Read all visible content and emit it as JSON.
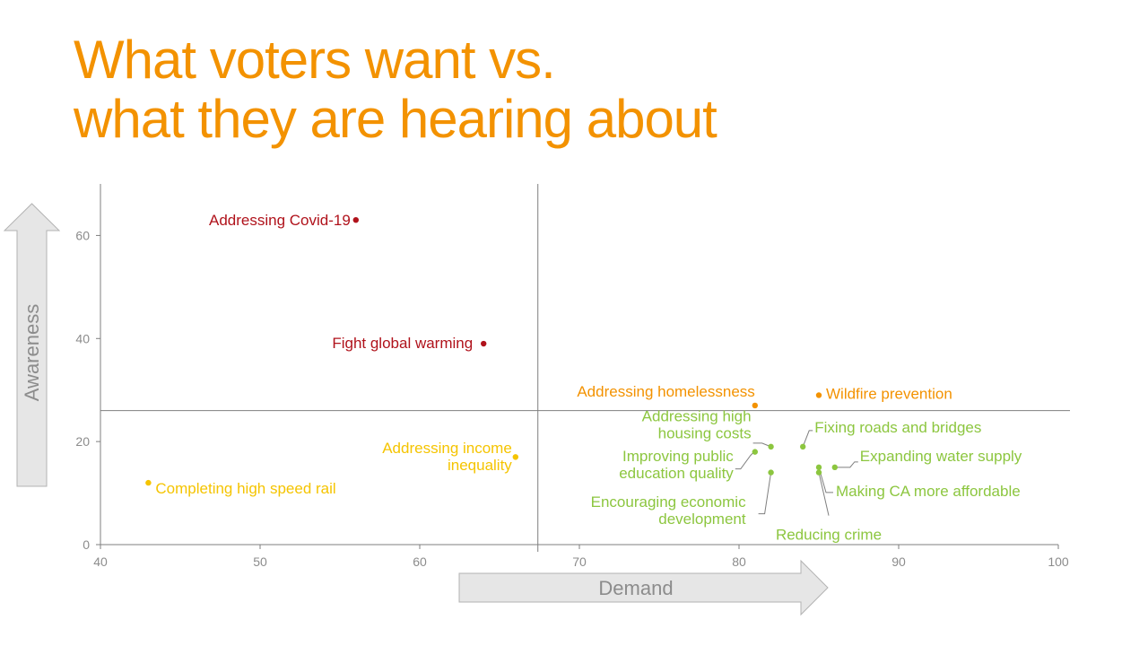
{
  "title": {
    "line1": "What voters want vs.",
    "line2": "what they are hearing about"
  },
  "colors": {
    "title": "#f39200",
    "dark_red": "#b0121b",
    "orange": "#f39200",
    "yellow": "#f5c400",
    "green": "#8cc63f",
    "axis": "#7f7f7f",
    "arrow_fill": "#e6e6e6",
    "arrow_stroke": "#b3b3b3"
  },
  "chart_data": {
    "type": "scatter",
    "title": "What voters want vs. what they are hearing about",
    "xlabel": "Demand",
    "ylabel": "Awareness",
    "xlim": [
      40,
      100
    ],
    "ylim": [
      0,
      70
    ],
    "x_ticks": [
      40,
      50,
      60,
      70,
      80,
      90,
      100
    ],
    "y_ticks": [
      0,
      20,
      40,
      60
    ],
    "quadrant_lines": {
      "x": 67.4,
      "y": 26
    },
    "grid": false,
    "points": [
      {
        "label": [
          "Addressing Covid-19"
        ],
        "x": 56,
        "y": 63,
        "group": "dark_red"
      },
      {
        "label": [
          "Fight global warming"
        ],
        "x": 64,
        "y": 39,
        "group": "dark_red"
      },
      {
        "label": [
          "Addressing homelessness"
        ],
        "x": 81,
        "y": 27,
        "group": "orange"
      },
      {
        "label": [
          "Wildfire prevention"
        ],
        "x": 85,
        "y": 29,
        "group": "orange"
      },
      {
        "label": [
          "Addressing income",
          "inequality"
        ],
        "x": 66,
        "y": 17,
        "group": "yellow"
      },
      {
        "label": [
          "Completing high speed rail"
        ],
        "x": 43,
        "y": 12,
        "group": "yellow"
      },
      {
        "label": [
          "Addressing high",
          "housing costs"
        ],
        "x": 82,
        "y": 19,
        "group": "green"
      },
      {
        "label": [
          "Fixing roads and bridges"
        ],
        "x": 84,
        "y": 19,
        "group": "green"
      },
      {
        "label": [
          "Improving public",
          "education quality"
        ],
        "x": 81,
        "y": 18,
        "group": "green"
      },
      {
        "label": [
          "Expanding water supply"
        ],
        "x": 86,
        "y": 15,
        "group": "green"
      },
      {
        "label": [
          "Making CA more affordable"
        ],
        "x": 85,
        "y": 15,
        "group": "green"
      },
      {
        "label": [
          "Encouraging economic",
          "development"
        ],
        "x": 82,
        "y": 14,
        "group": "green"
      },
      {
        "label": [
          "Reducing crime"
        ],
        "x": 85,
        "y": 14,
        "group": "green"
      }
    ]
  }
}
